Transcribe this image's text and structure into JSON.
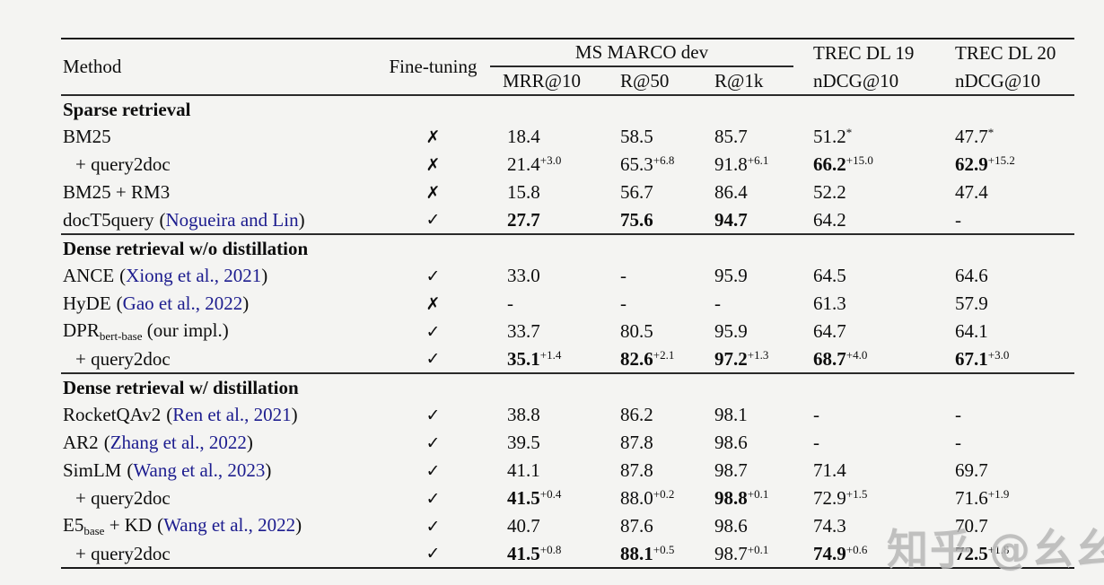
{
  "page": {
    "background": "#f4f4f2",
    "watermark": {
      "text": "知乎 @幺幺",
      "color": "#b5b5b5"
    }
  },
  "table": {
    "link_color": "#1c1c8e",
    "icons": {
      "check": "✓",
      "cross": "✗"
    },
    "header": {
      "method": "Method",
      "finetuning": "Fine-tuning",
      "group1": {
        "label": "MS MARCO dev",
        "cols": [
          "MRR@10",
          "R@50",
          "R@1k"
        ]
      },
      "group2": {
        "label": "TREC DL 19",
        "col": "nDCG@10"
      },
      "group3": {
        "label": "TREC DL 20",
        "col": "nDCG@10"
      }
    },
    "rows": [
      {
        "type": "section",
        "label": "Sparse retrieval"
      },
      {
        "type": "data",
        "method": {
          "name": "BM25"
        },
        "finetuning": "cross",
        "cells": [
          {
            "v": "18.4"
          },
          {
            "v": "58.5"
          },
          {
            "v": "85.7"
          },
          {
            "v": "51.2",
            "star": true
          },
          {
            "v": "47.7",
            "star": true
          }
        ]
      },
      {
        "type": "data",
        "indent": true,
        "method": {
          "name": "+ query2doc"
        },
        "finetuning": "cross",
        "cells": [
          {
            "v": "21.4",
            "sup": "+3.0"
          },
          {
            "v": "65.3",
            "sup": "+6.8"
          },
          {
            "v": "91.8",
            "sup": "+6.1"
          },
          {
            "v": "66.2",
            "b": true,
            "sup": "+15.0"
          },
          {
            "v": "62.9",
            "b": true,
            "sup": "+15.2"
          }
        ]
      },
      {
        "type": "data",
        "method": {
          "name": "BM25 + RM3"
        },
        "finetuning": "cross",
        "cells": [
          {
            "v": "15.8"
          },
          {
            "v": "56.7"
          },
          {
            "v": "86.4"
          },
          {
            "v": "52.2"
          },
          {
            "v": "47.4"
          }
        ]
      },
      {
        "type": "data",
        "method": {
          "name": "docT5query",
          "cite": "Nogueira and Lin"
        },
        "finetuning": "check",
        "cells": [
          {
            "v": "27.7",
            "b": true
          },
          {
            "v": "75.6",
            "b": true
          },
          {
            "v": "94.7",
            "b": true
          },
          {
            "v": "64.2"
          },
          {
            "v": "-"
          }
        ]
      },
      {
        "type": "section",
        "label": "Dense retrieval w/o distillation"
      },
      {
        "type": "data",
        "method": {
          "name": "ANCE",
          "cite": "Xiong et al., 2021"
        },
        "finetuning": "check",
        "cells": [
          {
            "v": "33.0"
          },
          {
            "v": "-"
          },
          {
            "v": "95.9"
          },
          {
            "v": "64.5"
          },
          {
            "v": "64.6"
          }
        ]
      },
      {
        "type": "data",
        "method": {
          "name": "HyDE",
          "cite": "Gao et al., 2022"
        },
        "finetuning": "cross",
        "cells": [
          {
            "v": "-"
          },
          {
            "v": "-"
          },
          {
            "v": "-"
          },
          {
            "v": "61.3"
          },
          {
            "v": "57.9"
          }
        ]
      },
      {
        "type": "data",
        "method": {
          "name": "DPR",
          "sub": "bert-base",
          "tail": " (our impl.)"
        },
        "finetuning": "check",
        "cells": [
          {
            "v": "33.7"
          },
          {
            "v": "80.5"
          },
          {
            "v": "95.9"
          },
          {
            "v": "64.7"
          },
          {
            "v": "64.1"
          }
        ]
      },
      {
        "type": "data",
        "indent": true,
        "method": {
          "name": "+ query2doc"
        },
        "finetuning": "check",
        "cells": [
          {
            "v": "35.1",
            "b": true,
            "sup": "+1.4"
          },
          {
            "v": "82.6",
            "b": true,
            "sup": "+2.1"
          },
          {
            "v": "97.2",
            "b": true,
            "sup": "+1.3"
          },
          {
            "v": "68.7",
            "b": true,
            "sup": "+4.0"
          },
          {
            "v": "67.1",
            "b": true,
            "sup": "+3.0"
          }
        ]
      },
      {
        "type": "section",
        "label": "Dense retrieval w/ distillation"
      },
      {
        "type": "data",
        "method": {
          "name": "RocketQAv2",
          "cite": "Ren et al., 2021"
        },
        "finetuning": "check",
        "cells": [
          {
            "v": "38.8"
          },
          {
            "v": "86.2"
          },
          {
            "v": "98.1"
          },
          {
            "v": "-"
          },
          {
            "v": "-"
          }
        ]
      },
      {
        "type": "data",
        "method": {
          "name": "AR2",
          "cite": "Zhang et al., 2022"
        },
        "finetuning": "check",
        "cells": [
          {
            "v": "39.5"
          },
          {
            "v": "87.8"
          },
          {
            "v": "98.6"
          },
          {
            "v": "-"
          },
          {
            "v": "-"
          }
        ]
      },
      {
        "type": "data",
        "method": {
          "name": "SimLM",
          "cite": "Wang et al., 2023"
        },
        "finetuning": "check",
        "cells": [
          {
            "v": "41.1"
          },
          {
            "v": "87.8"
          },
          {
            "v": "98.7"
          },
          {
            "v": "71.4"
          },
          {
            "v": "69.7"
          }
        ]
      },
      {
        "type": "data",
        "indent": true,
        "method": {
          "name": "+ query2doc"
        },
        "finetuning": "check",
        "cells": [
          {
            "v": "41.5",
            "b": true,
            "sup": "+0.4"
          },
          {
            "v": "88.0",
            "sup": "+0.2"
          },
          {
            "v": "98.8",
            "b": true,
            "sup": "+0.1"
          },
          {
            "v": "72.9",
            "sup": "+1.5"
          },
          {
            "v": "71.6",
            "sup": "+1.9"
          }
        ]
      },
      {
        "type": "data",
        "method": {
          "name": "E5",
          "sub": "base",
          "tail": " + KD",
          "cite": "Wang et al., 2022"
        },
        "finetuning": "check",
        "cells": [
          {
            "v": "40.7"
          },
          {
            "v": "87.6"
          },
          {
            "v": "98.6"
          },
          {
            "v": "74.3"
          },
          {
            "v": "70.7"
          }
        ]
      },
      {
        "type": "data",
        "indent": true,
        "method": {
          "name": "+ query2doc"
        },
        "finetuning": "check",
        "cells": [
          {
            "v": "41.5",
            "b": true,
            "sup": "+0.8"
          },
          {
            "v": "88.1",
            "b": true,
            "sup": "+0.5"
          },
          {
            "v": "98.7",
            "sup": "+0.1"
          },
          {
            "v": "74.9",
            "b": true,
            "sup": "+0.6"
          },
          {
            "v": "72.5",
            "b": true,
            "sup": "+1.8"
          }
        ]
      }
    ]
  }
}
